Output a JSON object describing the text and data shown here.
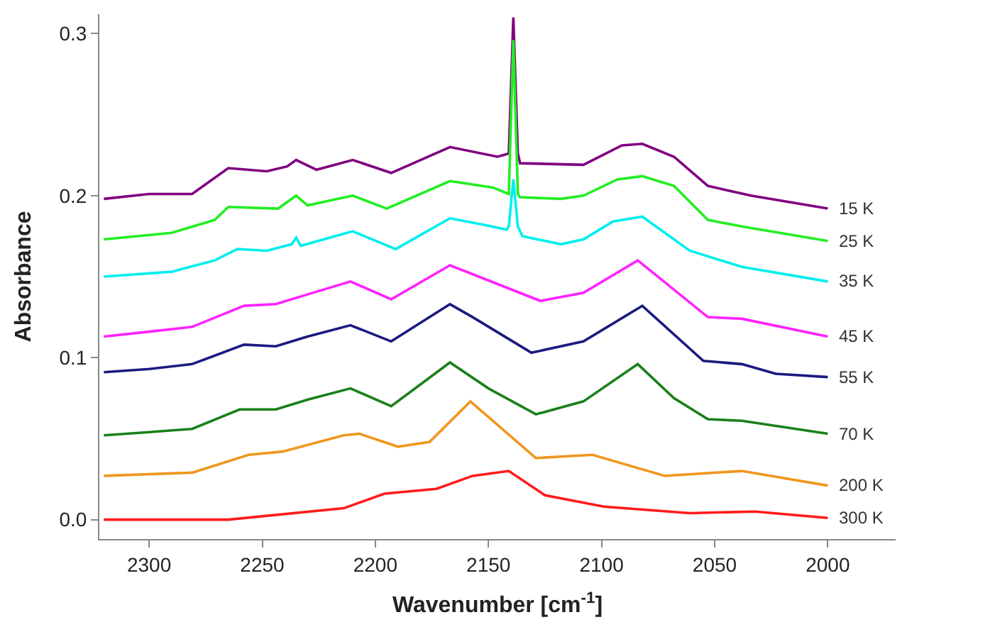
{
  "chart_data": {
    "type": "line",
    "xlabel": "Wavenumber [cm$^{-1}$]",
    "ylabel": "Absorbance",
    "xlim": [
      2322,
      1970
    ],
    "ylim": [
      -0.012,
      0.312
    ],
    "xticks": [
      2300,
      2250,
      2200,
      2150,
      2100,
      2050,
      2000
    ],
    "yticks": [
      {
        "value": 0,
        "label": "0.0"
      },
      0.1,
      0.2,
      0.3
    ],
    "legend": false,
    "marker": "none",
    "line_style": "solid",
    "series": [
      {
        "name": "15 K",
        "color": "#800080",
        "x": [
          2320,
          2300,
          2281,
          2265,
          2248,
          2239,
          2235,
          2226,
          2210,
          2193,
          2167,
          2146,
          2141,
          2139,
          2137,
          2136,
          2108,
          2091,
          2082,
          2068,
          2053,
          2034,
          2000
        ],
        "values": [
          0.198,
          0.201,
          0.201,
          0.217,
          0.215,
          0.218,
          0.222,
          0.216,
          0.222,
          0.214,
          0.23,
          0.224,
          0.226,
          0.31,
          0.226,
          0.22,
          0.219,
          0.231,
          0.232,
          0.224,
          0.206,
          0.2,
          0.192
        ]
      },
      {
        "name": "25 K",
        "color": "#22ee22",
        "x": [
          2320,
          2290,
          2271,
          2265,
          2243,
          2235,
          2230,
          2210,
          2195,
          2167,
          2148,
          2141,
          2139,
          2137,
          2136,
          2118,
          2108,
          2093,
          2082,
          2068,
          2053,
          2038,
          2000
        ],
        "values": [
          0.173,
          0.177,
          0.185,
          0.193,
          0.192,
          0.2,
          0.194,
          0.2,
          0.192,
          0.209,
          0.205,
          0.201,
          0.296,
          0.201,
          0.199,
          0.198,
          0.2,
          0.21,
          0.212,
          0.206,
          0.185,
          0.181,
          0.172
        ]
      },
      {
        "name": "35 K",
        "color": "#00eeee",
        "x": [
          2320,
          2290,
          2271,
          2261,
          2248,
          2237,
          2235,
          2233,
          2210,
          2191,
          2167,
          2152,
          2142,
          2141,
          2139,
          2137,
          2135,
          2118,
          2108,
          2095,
          2082,
          2061,
          2038,
          2000
        ],
        "values": [
          0.15,
          0.153,
          0.16,
          0.167,
          0.166,
          0.17,
          0.174,
          0.169,
          0.178,
          0.167,
          0.186,
          0.182,
          0.179,
          0.181,
          0.21,
          0.181,
          0.175,
          0.17,
          0.173,
          0.184,
          0.187,
          0.166,
          0.156,
          0.147
        ]
      },
      {
        "name": "45 K",
        "color": "#ff22ff",
        "x": [
          2320,
          2300,
          2281,
          2258,
          2244,
          2230,
          2211,
          2193,
          2167,
          2127,
          2108,
          2084,
          2053,
          2038,
          2000
        ],
        "values": [
          0.113,
          0.116,
          0.119,
          0.132,
          0.133,
          0.139,
          0.147,
          0.136,
          0.157,
          0.135,
          0.14,
          0.16,
          0.125,
          0.124,
          0.113
        ]
      },
      {
        "name": "55 K",
        "color": "#1a1a80",
        "x": [
          2320,
          2300,
          2281,
          2258,
          2244,
          2230,
          2211,
          2193,
          2167,
          2157,
          2131,
          2108,
          2082,
          2055,
          2038,
          2023,
          2000
        ],
        "values": [
          0.091,
          0.093,
          0.096,
          0.108,
          0.107,
          0.113,
          0.12,
          0.11,
          0.133,
          0.125,
          0.103,
          0.11,
          0.132,
          0.098,
          0.096,
          0.09,
          0.088
        ]
      },
      {
        "name": "70 K",
        "color": "#1a801a",
        "x": [
          2320,
          2300,
          2281,
          2260,
          2244,
          2230,
          2211,
          2193,
          2167,
          2150,
          2129,
          2108,
          2084,
          2068,
          2053,
          2038,
          2000
        ],
        "values": [
          0.052,
          0.054,
          0.056,
          0.068,
          0.068,
          0.074,
          0.081,
          0.07,
          0.097,
          0.081,
          0.065,
          0.073,
          0.096,
          0.075,
          0.062,
          0.061,
          0.053
        ]
      },
      {
        "name": "200 K",
        "color": "#f0961e",
        "x": [
          2320,
          2281,
          2256,
          2241,
          2214,
          2207,
          2190,
          2176,
          2158,
          2129,
          2104,
          2072,
          2038,
          2000
        ],
        "values": [
          0.027,
          0.029,
          0.04,
          0.042,
          0.052,
          0.053,
          0.045,
          0.048,
          0.073,
          0.038,
          0.04,
          0.027,
          0.03,
          0.021
        ]
      },
      {
        "name": "300 K",
        "color": "#ff1a1a",
        "x": [
          2320,
          2265,
          2214,
          2196,
          2173,
          2157,
          2141,
          2125,
          2099,
          2061,
          2032,
          2000
        ],
        "values": [
          0.0,
          0.0,
          0.007,
          0.016,
          0.019,
          0.027,
          0.03,
          0.015,
          0.008,
          0.004,
          0.005,
          0.001
        ]
      }
    ]
  }
}
